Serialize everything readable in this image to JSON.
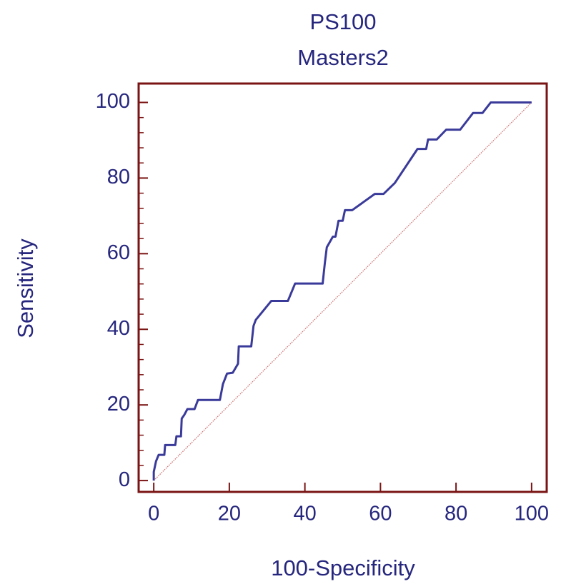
{
  "chart_data": {
    "type": "line",
    "title": "PS100",
    "subtitle": "Masters2",
    "x_label": "100-Specificity",
    "y_label": "Sensitivity",
    "xlim": [
      -4,
      104
    ],
    "ylim": [
      -3,
      105
    ],
    "xticks": [
      0,
      20,
      40,
      60,
      80,
      100
    ],
    "yticks": [
      0,
      20,
      40,
      60,
      80,
      100
    ],
    "yminorticks": [
      4,
      8,
      12,
      16,
      24,
      28,
      32,
      36,
      44,
      48,
      52,
      56,
      64,
      68,
      72,
      76,
      84,
      88,
      92,
      96
    ],
    "frame_color": "#7a1414",
    "series": [
      {
        "color": "#3a3a9a",
        "x": [
          0,
          0,
          0.6,
          1.3,
          2.8,
          3,
          5.7,
          6,
          7.2,
          7.4,
          8.1,
          8.9,
          10.8,
          11.7,
          17.5,
          18.3,
          19.4,
          20.9,
          22.3,
          22.5,
          25.8,
          26.4,
          27,
          31.1,
          35.5,
          37.4,
          44.7,
          45.3,
          45.8,
          47.4,
          48.1,
          48.9,
          50,
          50.6,
          52.5,
          58.5,
          60.8,
          63.8,
          69.8,
          72.1,
          72.6,
          74.9,
          77.4,
          81.1,
          84.5,
          87,
          89.2,
          100
        ],
        "values": [
          0,
          2.3,
          5.1,
          6.8,
          6.8,
          9.4,
          9.4,
          11.7,
          11.7,
          16.4,
          17.4,
          18.9,
          18.9,
          21.3,
          21.3,
          25.5,
          28.3,
          28.5,
          30.9,
          35.5,
          35.5,
          40.9,
          42.5,
          47.5,
          47.5,
          52.1,
          52.1,
          57.7,
          61.7,
          64.5,
          64.5,
          68.7,
          68.7,
          71.5,
          71.5,
          75.8,
          75.8,
          78.7,
          87.7,
          87.7,
          90.2,
          90.2,
          92.8,
          92.8,
          97.2,
          97.2,
          100,
          100
        ]
      },
      {
        "color": "#d07070",
        "dotted": true,
        "x": [
          0,
          100
        ],
        "values": [
          0,
          100
        ]
      }
    ]
  }
}
